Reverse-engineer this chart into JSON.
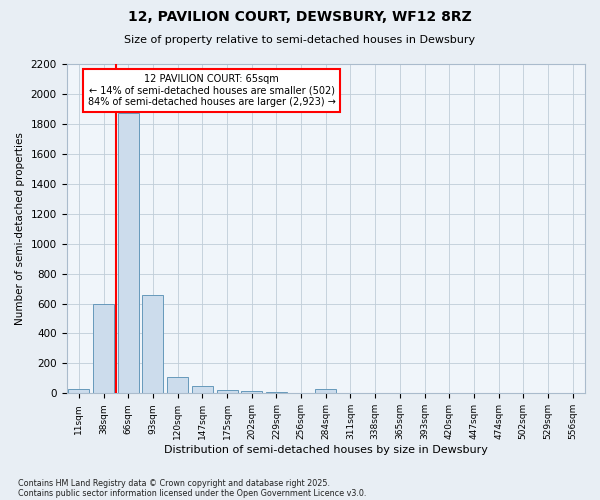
{
  "title1": "12, PAVILION COURT, DEWSBURY, WF12 8RZ",
  "title2": "Size of property relative to semi-detached houses in Dewsbury",
  "xlabel": "Distribution of semi-detached houses by size in Dewsbury",
  "ylabel": "Number of semi-detached properties",
  "categories": [
    "11sqm",
    "38sqm",
    "66sqm",
    "93sqm",
    "120sqm",
    "147sqm",
    "175sqm",
    "202sqm",
    "229sqm",
    "256sqm",
    "284sqm",
    "311sqm",
    "338sqm",
    "365sqm",
    "393sqm",
    "420sqm",
    "447sqm",
    "474sqm",
    "502sqm",
    "529sqm",
    "556sqm"
  ],
  "values": [
    30,
    600,
    1870,
    660,
    110,
    50,
    20,
    15,
    10,
    5,
    30,
    5,
    0,
    0,
    0,
    0,
    0,
    0,
    0,
    0,
    0
  ],
  "bar_color": "#ccdcec",
  "bar_edgecolor": "#6699bb",
  "vline_x_index": 2,
  "vline_color": "red",
  "annotation_title": "12 PAVILION COURT: 65sqm",
  "annotation_line1": "← 14% of semi-detached houses are smaller (502)",
  "annotation_line2": "84% of semi-detached houses are larger (2,923) →",
  "annotation_box_facecolor": "white",
  "annotation_box_edgecolor": "red",
  "ylim": [
    0,
    2200
  ],
  "yticks": [
    0,
    200,
    400,
    600,
    800,
    1000,
    1200,
    1400,
    1600,
    1800,
    2000,
    2200
  ],
  "footnote1": "Contains HM Land Registry data © Crown copyright and database right 2025.",
  "footnote2": "Contains public sector information licensed under the Open Government Licence v3.0.",
  "bg_color": "#e8eef4",
  "plot_bg_color": "#f0f5fa",
  "grid_color": "#c0cdd8"
}
